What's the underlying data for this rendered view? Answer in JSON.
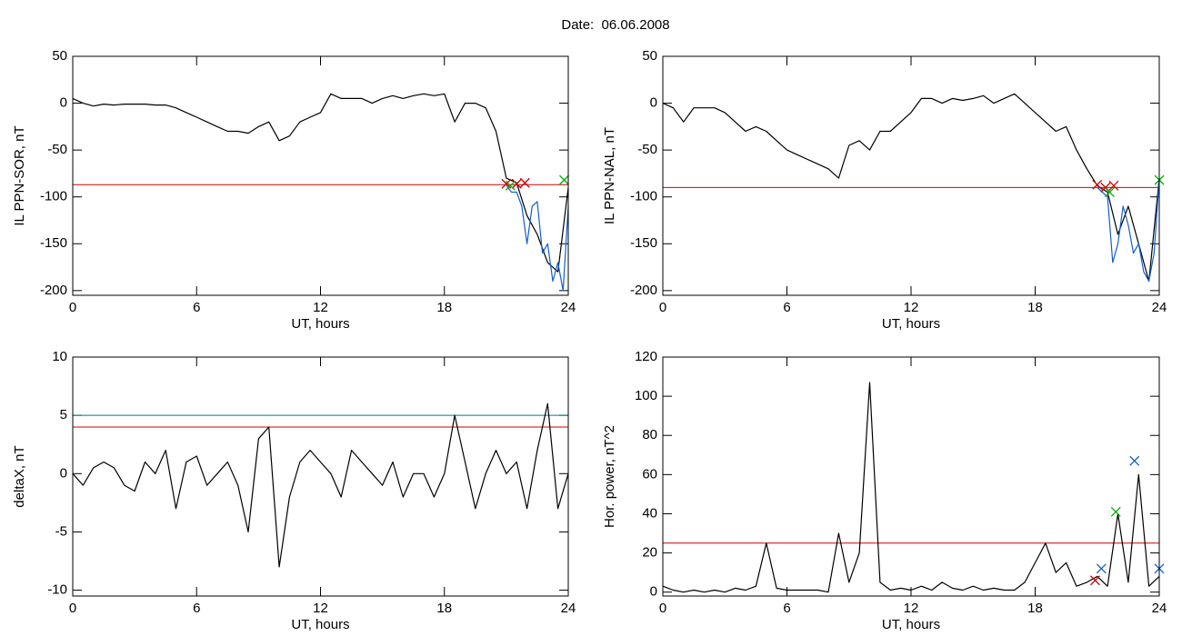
{
  "title": "Date:  06.06.2008",
  "chart_data": [
    {
      "type": "line",
      "ylabel": "IL PPN-SOR, nT",
      "xlabel": "UT, hours",
      "xlim": [
        0,
        24
      ],
      "xticks": [
        0,
        6,
        12,
        18,
        24
      ],
      "ylim": [
        -205,
        50
      ],
      "yticks": [
        50,
        0,
        -50,
        -100,
        -150,
        -200
      ],
      "series": [
        {
          "color": "#000000",
          "x": [
            0,
            0.5,
            1,
            1.5,
            2,
            2.5,
            3,
            3.5,
            4,
            4.5,
            5,
            5.5,
            6,
            6.5,
            7,
            7.5,
            8,
            8.5,
            9,
            9.5,
            10,
            10.5,
            11,
            11.5,
            12,
            12.5,
            13,
            13.5,
            14,
            14.5,
            15,
            15.5,
            16,
            16.5,
            17,
            17.5,
            18,
            18.5,
            19,
            19.5,
            20,
            20.5,
            21,
            21.5,
            22,
            22.5,
            23,
            23.5,
            24
          ],
          "values": [
            5,
            0,
            -3,
            -1,
            -2,
            -1,
            -1,
            -1,
            -2,
            -2,
            -5,
            -10,
            -15,
            -20,
            -25,
            -30,
            -30,
            -32,
            -25,
            -20,
            -40,
            -35,
            -20,
            -15,
            -10,
            10,
            5,
            5,
            5,
            0,
            5,
            8,
            5,
            8,
            10,
            8,
            10,
            -20,
            0,
            0,
            -5,
            -30,
            -80,
            -85,
            -120,
            -140,
            -170,
            -180,
            -90
          ]
        },
        {
          "color": "#1060d0",
          "x": [
            21,
            21.25,
            21.5,
            21.75,
            22,
            22.25,
            22.5,
            22.75,
            23,
            23.25,
            23.5,
            23.75,
            24
          ],
          "values": [
            -88,
            -95,
            -95,
            -110,
            -150,
            -110,
            -105,
            -160,
            -150,
            -190,
            -170,
            -200,
            -110
          ]
        }
      ],
      "hlines": [
        {
          "value": -87,
          "color": "#d00000"
        }
      ],
      "markers": [
        {
          "color": "#d00000",
          "x": [
            21,
            21.5,
            21.9
          ],
          "values": [
            -86,
            -86,
            -85
          ]
        },
        {
          "color": "#00b000",
          "x": [
            21.2,
            23.8
          ],
          "values": [
            -88,
            -82
          ]
        }
      ]
    },
    {
      "type": "line",
      "ylabel": "IL PPN-NAL, nT",
      "xlabel": "UT, hours",
      "xlim": [
        0,
        24
      ],
      "xticks": [
        0,
        6,
        12,
        18,
        24
      ],
      "ylim": [
        -205,
        50
      ],
      "yticks": [
        50,
        0,
        -50,
        -100,
        -150,
        -200
      ],
      "series": [
        {
          "color": "#000000",
          "x": [
            0,
            0.5,
            1,
            1.5,
            2,
            2.5,
            3,
            3.5,
            4,
            4.5,
            5,
            5.5,
            6,
            6.5,
            7,
            7.5,
            8,
            8.5,
            9,
            9.5,
            10,
            10.5,
            11,
            11.5,
            12,
            12.5,
            13,
            13.5,
            14,
            14.5,
            15,
            15.5,
            16,
            16.5,
            17,
            17.5,
            18,
            18.5,
            19,
            19.5,
            20,
            20.5,
            21,
            21.5,
            22,
            22.5,
            23,
            23.5,
            24
          ],
          "values": [
            0,
            -5,
            -20,
            -5,
            -5,
            -5,
            -10,
            -20,
            -30,
            -25,
            -30,
            -40,
            -50,
            -55,
            -60,
            -65,
            -70,
            -80,
            -45,
            -40,
            -50,
            -30,
            -30,
            -20,
            -10,
            5,
            5,
            0,
            5,
            3,
            5,
            8,
            0,
            5,
            10,
            0,
            -10,
            -20,
            -30,
            -25,
            -50,
            -70,
            -88,
            -95,
            -140,
            -110,
            -150,
            -190,
            -80
          ]
        },
        {
          "color": "#1060d0",
          "x": [
            21,
            21.25,
            21.5,
            21.75,
            22,
            22.25,
            22.5,
            22.75,
            23,
            23.25,
            23.5,
            23.75,
            24
          ],
          "values": [
            -90,
            -95,
            -100,
            -170,
            -150,
            -110,
            -130,
            -160,
            -150,
            -180,
            -190,
            -160,
            -80
          ]
        }
      ],
      "hlines": [
        {
          "value": -90,
          "color": "#d00000"
        }
      ],
      "markers": [
        {
          "color": "#d00000",
          "x": [
            21,
            21.4,
            21.8
          ],
          "values": [
            -87,
            -90,
            -88
          ]
        },
        {
          "color": "#00b000",
          "x": [
            21.6,
            24
          ],
          "values": [
            -95,
            -82
          ]
        }
      ]
    },
    {
      "type": "line",
      "ylabel": "deltaX, nT",
      "xlabel": "UT, hours",
      "xlim": [
        0,
        24
      ],
      "xticks": [
        0,
        6,
        12,
        18,
        24
      ],
      "ylim": [
        -10.5,
        10
      ],
      "yticks": [
        10,
        5,
        0,
        -5,
        -10
      ],
      "series": [
        {
          "color": "#000000",
          "x": [
            0,
            0.5,
            1,
            1.5,
            2,
            2.5,
            3,
            3.5,
            4,
            4.5,
            5,
            5.5,
            6,
            6.5,
            7,
            7.5,
            8,
            8.5,
            9,
            9.5,
            10,
            10.5,
            11,
            11.5,
            12,
            12.5,
            13,
            13.5,
            14,
            14.5,
            15,
            15.5,
            16,
            16.5,
            17,
            17.5,
            18,
            18.5,
            19,
            19.5,
            20,
            20.5,
            21,
            21.5,
            22,
            22.5,
            23,
            23.5,
            24
          ],
          "values": [
            0,
            -1,
            0.5,
            1,
            0.5,
            -1,
            -1.5,
            1,
            0,
            2,
            -3,
            1,
            1.5,
            -1,
            0,
            1,
            -1,
            -5,
            3,
            4,
            -8,
            -2,
            1,
            2,
            1,
            0,
            -2,
            2,
            1,
            0,
            -1,
            1,
            -2,
            0,
            0,
            -2,
            0,
            5,
            1,
            -3,
            0,
            2,
            0,
            1,
            -3,
            2,
            6,
            -3,
            0
          ]
        }
      ],
      "hlines": [
        {
          "value": 5,
          "color": "#008080"
        },
        {
          "value": 4,
          "color": "#d00000"
        }
      ],
      "markers": []
    },
    {
      "type": "line",
      "ylabel": "Hor. power, nT^2",
      "xlabel": "UT, hours",
      "xlim": [
        0,
        24
      ],
      "xticks": [
        0,
        6,
        12,
        18,
        24
      ],
      "ylim": [
        -2,
        120
      ],
      "yticks": [
        120,
        100,
        80,
        60,
        40,
        20,
        0
      ],
      "series": [
        {
          "color": "#000000",
          "x": [
            0,
            0.5,
            1,
            1.5,
            2,
            2.5,
            3,
            3.5,
            4,
            4.5,
            5,
            5.5,
            6,
            6.5,
            7,
            7.5,
            8,
            8.5,
            9,
            9.5,
            10,
            10.5,
            11,
            11.5,
            12,
            12.5,
            13,
            13.5,
            14,
            14.5,
            15,
            15.5,
            16,
            16.5,
            17,
            17.5,
            18,
            18.5,
            19,
            19.5,
            20,
            20.5,
            21,
            21.5,
            22,
            22.5,
            23,
            23.5,
            24
          ],
          "values": [
            3,
            1,
            0,
            1,
            0,
            1,
            0,
            2,
            1,
            3,
            25,
            2,
            1,
            1,
            1,
            1,
            0,
            30,
            5,
            20,
            107,
            5,
            1,
            2,
            1,
            3,
            1,
            5,
            2,
            1,
            3,
            1,
            2,
            1,
            1,
            5,
            15,
            25,
            10,
            15,
            3,
            5,
            8,
            3,
            40,
            5,
            60,
            3,
            8
          ]
        }
      ],
      "hlines": [
        {
          "value": 25,
          "color": "#d00000"
        }
      ],
      "markers": [
        {
          "color": "#00b000",
          "x": [
            21.9
          ],
          "values": [
            41
          ]
        },
        {
          "color": "#1060d0",
          "x": [
            22.8,
            21.2,
            24
          ],
          "values": [
            67,
            12,
            12
          ]
        },
        {
          "color": "#d00000",
          "x": [
            20.9
          ],
          "values": [
            6
          ]
        }
      ]
    }
  ]
}
